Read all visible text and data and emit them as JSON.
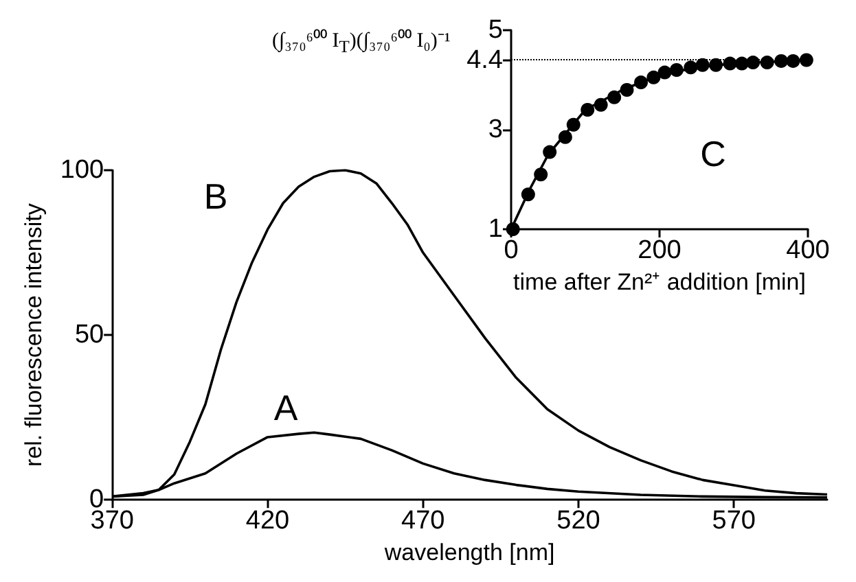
{
  "chart_data": [
    {
      "type": "line",
      "xlabel": "wavelength [nm]",
      "ylabel": "rel. fluorescence intensity",
      "x": [
        370,
        380,
        385,
        390,
        395,
        400,
        405,
        410,
        415,
        420,
        425,
        430,
        435,
        440,
        445,
        450,
        455,
        460,
        465,
        470,
        480,
        490,
        500,
        510,
        520,
        530,
        540,
        550,
        560,
        570,
        580,
        590,
        600
      ],
      "series": [
        {
          "color": "#000000",
          "values": [
            1,
            1.5,
            3,
            7.7,
            17.6,
            29,
            45.6,
            60,
            72,
            82,
            90,
            95,
            98,
            99.7,
            100,
            99,
            96,
            90,
            83.5,
            75,
            62,
            49,
            37,
            27.5,
            21,
            16,
            12,
            8.6,
            6,
            4.4,
            2.8,
            2,
            1.6
          ]
        },
        {
          "color": "#000000",
          "x": [
            370,
            380,
            385,
            390,
            400,
            410,
            420,
            430,
            435,
            440,
            450,
            460,
            470,
            480,
            490,
            500,
            510,
            520,
            540,
            560,
            580,
            600
          ],
          "values": [
            1,
            2,
            3,
            5,
            8,
            14,
            19,
            20,
            20.4,
            19.8,
            18.5,
            15,
            11,
            8,
            6,
            4.5,
            3.3,
            2.5,
            1.5,
            1,
            0.8,
            0.7
          ]
        }
      ],
      "xlim": [
        370,
        600
      ],
      "xticks": [
        370,
        420,
        470,
        520,
        570
      ],
      "ylim": [
        0,
        100
      ],
      "yticks": [
        0,
        50,
        100
      ],
      "annotations": [
        "B",
        "A"
      ]
    },
    {
      "type": "scatter",
      "xlabel": "time after Zn²⁺ addition [min]",
      "ylabel": "(∫₃₇₀⁶⁰⁰ I$_{T}$)(∫₃₇₀⁶⁰⁰ I₀)⁻¹",
      "x": [
        2.5,
        23,
        40,
        52,
        73,
        84,
        103,
        121,
        139,
        156,
        175,
        192,
        207,
        223,
        242,
        258,
        276,
        295,
        311,
        326,
        345,
        364,
        380,
        398
      ],
      "series": [
        {
          "color": "#000000",
          "marker": "circle",
          "values": [
            1.0,
            1.7,
            2.1,
            2.55,
            2.85,
            3.1,
            3.4,
            3.5,
            3.65,
            3.8,
            3.95,
            4.05,
            4.15,
            4.2,
            4.25,
            4.3,
            4.3,
            4.33,
            4.33,
            4.35,
            4.35,
            4.38,
            4.38,
            4.4
          ]
        },
        {
          "type": "line",
          "color": "#000000",
          "x": [
            0,
            25,
            50,
            75,
            100,
            150,
            200,
            250,
            300,
            400
          ],
          "values": [
            1,
            1.8,
            2.5,
            2.95,
            3.4,
            3.8,
            4.1,
            4.25,
            4.33,
            4.4
          ]
        }
      ],
      "xlim": [
        0,
        400
      ],
      "xticks": [
        0,
        200,
        400
      ],
      "ylim": [
        1,
        5
      ],
      "yticks": [
        1,
        3,
        4.4,
        5
      ],
      "ref_lines": [
        {
          "axis": "y",
          "value": 4.4,
          "color": "#000000",
          "line_style": "dotted"
        }
      ],
      "annotations": [
        "C"
      ]
    }
  ]
}
